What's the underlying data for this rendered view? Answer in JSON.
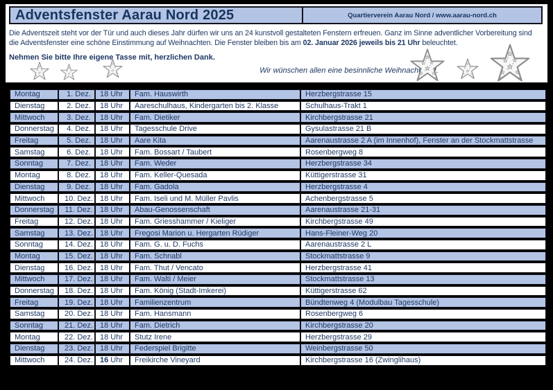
{
  "header": {
    "title": "Adventsfenster Aarau Nord 2025",
    "right": "Quartierverein Aarau Nord / www.aarau-nord.ch"
  },
  "intro": {
    "part1": "Die Adventszeit steht vor der Tür und auch dieses Jahr dürfen wir uns an 24 kunstvoll gestalteten Fenstern erfreuen. Ganz im Sinne adventlicher Vorbereitung sind die Adventsfenster eine schöne Einstimmung auf Weihnachten. Die Fenster bleiben bis am ",
    "bold": "02. Januar 2026 jeweils bis 21 Uhr",
    "part2": " beleuchtet."
  },
  "notes": {
    "cup": "Nehmen Sie bitte Ihre eigene Tasse mit, herzlichen Dank.",
    "wish": "Wir wünschen allen eine besinnliche Weihnachtszeit."
  },
  "colors": {
    "background": "#000000",
    "panel": "#ffffff",
    "accent_blue": "#b3c4e5",
    "text_navy": "#1f3864",
    "star_gray": "#8c8c8c"
  },
  "icons": {
    "decoration": "star-icon"
  },
  "table": {
    "rows": [
      {
        "day": "Montag",
        "date": "1. Dez.",
        "time": "18 Uhr",
        "host": "Fam. Hauswirth",
        "address": "Herzbergstrasse 15"
      },
      {
        "day": "Dienstag",
        "date": "2. Dez.",
        "time": "18 Uhr",
        "host": "Aareschulhaus, Kindergarten bis 2. Klasse",
        "address": "Schulhaus-Trakt 1"
      },
      {
        "day": "Mittwoch",
        "date": "3. Dez.",
        "time": "18 Uhr",
        "host": "Fam. Dietiker",
        "address": "Kirchbergstrasse 21"
      },
      {
        "day": "Donnerstag",
        "date": "4. Dez.",
        "time": "18 Uhr",
        "host": "Tagesschule Drive",
        "address": "Gysulastrasse 21 B"
      },
      {
        "day": "Freitag",
        "date": "5. Dez.",
        "time": "18 Uhr",
        "host": "Aare Kita",
        "address": "Aarenaustrasse 2 A (im Innenhof), Fenster an der Stockmattstrasse"
      },
      {
        "day": "Samstag",
        "date": "6. Dez.",
        "time": "18 Uhr",
        "host": "Fam. Bossart / Taubert",
        "address": "Rosenbergweg 8"
      },
      {
        "day": "Sonntag",
        "date": "7. Dez.",
        "time": "18 Uhr",
        "host": "Fam. Weder",
        "address": "Herzbergstrasse 34"
      },
      {
        "day": "Montag",
        "date": "8. Dez.",
        "time": "18 Uhr",
        "host": "Fam. Keller-Quesada",
        "address": "Küttigerstrasse 31"
      },
      {
        "day": "Dienstag",
        "date": "9. Dez.",
        "time": "18 Uhr",
        "host": "Fam. Gadola",
        "address": "Herzbergstrasse 4"
      },
      {
        "day": "Mittwoch",
        "date": "10. Dez.",
        "time": "18 Uhr",
        "host": "Fam. Iseli und M. Müller Pavlis",
        "address": "Achenbergstrasse 5"
      },
      {
        "day": "Donnerstag",
        "date": "11. Dez.",
        "time": "18 Uhr",
        "host": "Abau-Genossenschaft",
        "address": "Aarenaustrasse 21-31"
      },
      {
        "day": "Freitag",
        "date": "12. Dez.",
        "time": "18 Uhr",
        "host": "Fam. Griesshammer / Kieliger",
        "address": "Kirchbergstrasse 49"
      },
      {
        "day": "Samstag",
        "date": "13. Dez.",
        "time": "18 Uhr",
        "host": "Fregosi Marion u. Hergarten Rüdiger",
        "address": "Hans-Fleiner-Weg 20"
      },
      {
        "day": "Sonntag",
        "date": "14. Dez.",
        "time": "18 Uhr",
        "host": "Fam. G. u. D. Fuchs",
        "address": "Aarenaustrasse 2 L"
      },
      {
        "day": "Montag",
        "date": "15. Dez.",
        "time": "18 Uhr",
        "host": "Fam. Schnabl",
        "address": "Stockmattstrasse 9"
      },
      {
        "day": "Dienstag",
        "date": "16. Dez.",
        "time": "18 Uhr",
        "host": "Fam. Thut / Vencato",
        "address": "Herzbergstrasse 41"
      },
      {
        "day": "Mittwoch",
        "date": "17. Dez.",
        "time": "18 Uhr",
        "host": "Fam. Walti / Meier",
        "address": "Stockmattstrasse 13"
      },
      {
        "day": "Donnerstag",
        "date": "18. Dez.",
        "time": "18 Uhr",
        "host": "Fam. König (Stadt-Imkerei)",
        "address": "Küttigerstrasse 62"
      },
      {
        "day": "Freitag",
        "date": "19. Dez.",
        "time": "18 Uhr",
        "host": "Familienzentrum",
        "address": "Bündtenweg 4 (Modulbau Tagesschule)"
      },
      {
        "day": "Samstag",
        "date": "20. Dez.",
        "time": "18 Uhr",
        "host": "Fam. Hansmann",
        "address": "Rosenbergweg 6"
      },
      {
        "day": "Sonntag",
        "date": "21. Dez.",
        "time": "18 Uhr",
        "host": "Fam. Dietrich",
        "address": "Kirchbergstrasse 20"
      },
      {
        "day": "Montag",
        "date": "22. Dez.",
        "time": "18 Uhr",
        "host": "Stutz Irene",
        "address": "Herzbergstrasse 29"
      },
      {
        "day": "Dienstag",
        "date": "23. Dez.",
        "time": "18 Uhr",
        "host": "Federspiel Brigitte",
        "address": "Weinbergstrasse 50"
      },
      {
        "day": "Mittwoch",
        "date": "24. Dez.",
        "time": "16 Uhr",
        "time_bold_hour": true,
        "host": "Freikirche Vineyard",
        "address": "Kirchbergstrasse 16 (Zwinglihaus)"
      }
    ]
  }
}
